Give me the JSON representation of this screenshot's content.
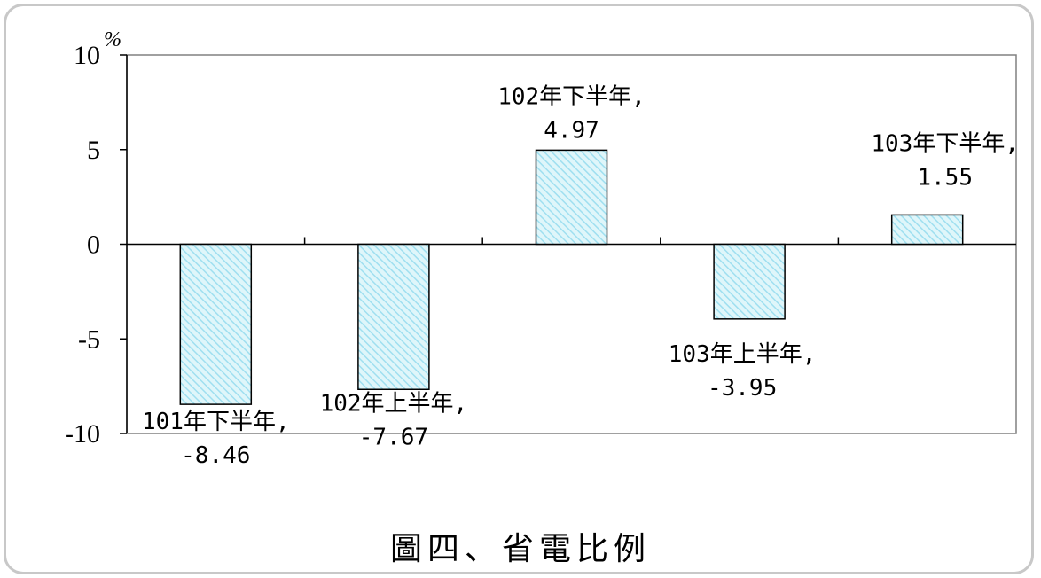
{
  "chart_data": {
    "type": "bar",
    "categories": [
      "101年下半年",
      "102年上半年",
      "102年下半年",
      "103年上半年",
      "103年下半年"
    ],
    "values": [
      -8.46,
      -7.67,
      4.97,
      -3.95,
      1.55
    ],
    "value_labels": [
      "-8.46",
      "-7.67",
      "4.97",
      "-3.95",
      "1.55"
    ],
    "ylim": [
      -10,
      10
    ],
    "yticks": [
      "10",
      "5",
      "0",
      "-5",
      "-10"
    ],
    "ytick_values": [
      10,
      5,
      0,
      -5,
      -10
    ],
    "yunit": "%",
    "grid": false,
    "bar_fill": "#dff6fa",
    "bar_hatch": "#9fdff0",
    "bar_stroke": "#000000"
  },
  "caption": "圖四、省電比例"
}
